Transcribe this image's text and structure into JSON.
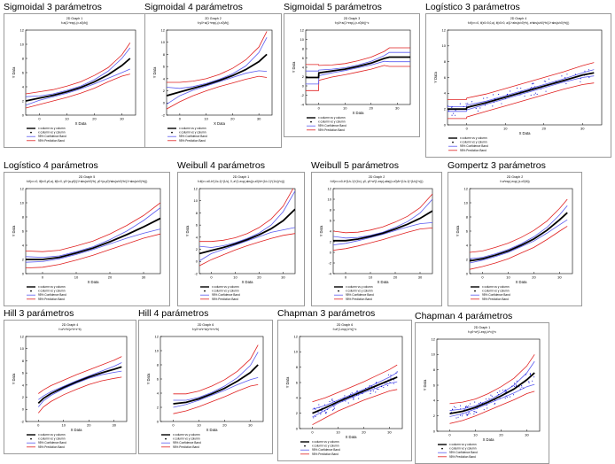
{
  "legend": {
    "entries": [
      "x column vs y column",
      "x column vs y column",
      "95% Confidence Band",
      "95% Prediction Band"
    ],
    "colors": {
      "fit": "#000000",
      "data": "#0000cc",
      "confidence": "#5a5af0",
      "prediction": "#e02020"
    }
  },
  "chart_data": [
    {
      "type": "line",
      "name": "Sigmoidal 3 parámetros",
      "graph_title": "2D Graph 1",
      "equation": "f=a/(1+exp(-(x-x0)/b))",
      "xlabel": "X Data",
      "ylabel": "Y Data",
      "xlim": [
        -5,
        35
      ],
      "ylim": [
        0,
        12
      ],
      "xticks": [
        0,
        10,
        20,
        30
      ],
      "yticks": [
        0,
        2,
        4,
        6,
        8,
        10,
        12
      ],
      "fit": {
        "x": [
          -5,
          0,
          5,
          10,
          15,
          20,
          25,
          30,
          33
        ],
        "y": [
          2.0,
          2.4,
          2.8,
          3.3,
          3.9,
          4.7,
          5.7,
          7.0,
          8.0
        ]
      },
      "ci": [
        0.6,
        0.3,
        0.2,
        0.2,
        0.2,
        0.3,
        0.5,
        1.0,
        1.5
      ],
      "pi": [
        1.0,
        0.9,
        0.8,
        0.8,
        0.8,
        0.9,
        1.0,
        1.5,
        2.2
      ],
      "points": 0
    },
    {
      "type": "line",
      "name": "Sigmoidal 4 parámetros",
      "graph_title": "2D Graph 2",
      "equation": "f=y0+a/(1+exp(-(x-x0)/b))",
      "xlabel": "X Data",
      "ylabel": "Y Data",
      "xlim": [
        -5,
        35
      ],
      "ylim": [
        -2,
        12
      ],
      "xticks": [
        0,
        10,
        20,
        30
      ],
      "yticks": [
        -2,
        0,
        2,
        4,
        6,
        8,
        10,
        12
      ],
      "fit": {
        "x": [
          -5,
          0,
          5,
          10,
          15,
          20,
          25,
          30,
          33
        ],
        "y": [
          1.2,
          1.8,
          2.4,
          3.0,
          3.7,
          4.5,
          5.5,
          6.8,
          8.0
        ]
      },
      "ci": [
        1.4,
        0.6,
        0.3,
        0.2,
        0.2,
        0.3,
        0.6,
        1.5,
        2.8
      ],
      "pi": [
        2.2,
        1.6,
        1.2,
        1.0,
        1.0,
        1.2,
        1.6,
        2.4,
        3.8
      ],
      "points": 0
    },
    {
      "type": "line",
      "name": "Sigmoidal 5 parámetros",
      "graph_title": "2D Graph 3",
      "equation": "f=y0+a/(1+exp(-(x-x0)/b))^c",
      "xlabel": "X Data",
      "ylabel": "Y Data",
      "xlim": [
        -5,
        35
      ],
      "ylim": [
        -4,
        12
      ],
      "xticks": [
        0,
        10,
        20,
        30
      ],
      "yticks": [
        -4,
        -2,
        0,
        2,
        4,
        6,
        8,
        10,
        12
      ],
      "fit": {
        "x": [
          -5,
          -0.1,
          0,
          5,
          10,
          15,
          20,
          25,
          27,
          30,
          35
        ],
        "y": [
          1.8,
          1.8,
          2.8,
          3.2,
          3.6,
          4.2,
          4.9,
          5.9,
          6.2,
          6.2,
          6.2
        ]
      },
      "ci": [
        1.4,
        1.4,
        0.6,
        0.4,
        0.3,
        0.3,
        0.4,
        0.6,
        1.0,
        1.0,
        1.0
      ],
      "pi": [
        2.8,
        2.8,
        1.6,
        1.3,
        1.2,
        1.2,
        1.3,
        1.5,
        2.0,
        2.0,
        2.0
      ],
      "points": 0
    },
    {
      "type": "line",
      "name": "Logístico 3 parámetros",
      "graph_title": "2D Graph 4",
      "equation": "f=if(x<=0, if(x0>0,0,a), if(x0>0, a/(1+abs(x/x0)^b), a*abs(x/x0)^b/(1+abs(x/x0)^b)))",
      "xlabel": "X Data",
      "ylabel": "Y Data",
      "xlim": [
        -5,
        35
      ],
      "ylim": [
        0,
        12
      ],
      "xticks": [
        0,
        10,
        20,
        30
      ],
      "yticks": [
        0,
        2,
        4,
        6,
        8,
        10,
        12
      ],
      "fit": {
        "x": [
          -5,
          -0.1,
          0,
          5,
          10,
          15,
          20,
          25,
          30,
          33
        ],
        "y": [
          2.0,
          2.0,
          2.2,
          2.8,
          3.5,
          4.2,
          4.9,
          5.6,
          6.3,
          6.6
        ]
      },
      "ci": [
        0.3,
        0.3,
        0.3,
        0.2,
        0.2,
        0.2,
        0.2,
        0.2,
        0.3,
        0.4
      ],
      "pi": [
        1.2,
        1.2,
        1.2,
        1.1,
        1.1,
        1.1,
        1.1,
        1.1,
        1.2,
        1.3
      ],
      "points": 70
    },
    {
      "type": "line",
      "name": "Logístico 4 parámetros",
      "graph_title": "2D Graph 5",
      "equation": "f=if(x<=0, if(b>0,y0,a), if(b>0, y0+(a-y0)/(1+abs(x/x0)^b), y0+(a-y0)*abs(x/x0)^b/(1+abs(x/x0)^b)))",
      "xlabel": "X Data",
      "ylabel": "Y Data",
      "xlim": [
        -5,
        35
      ],
      "ylim": [
        0,
        12
      ],
      "xticks": [
        0,
        10,
        20,
        30
      ],
      "yticks": [
        0,
        2,
        4,
        6,
        8,
        10,
        12
      ],
      "fit": {
        "x": [
          -5,
          0,
          5,
          10,
          15,
          20,
          25,
          30,
          35
        ],
        "y": [
          2.0,
          2.0,
          2.3,
          2.9,
          3.6,
          4.5,
          5.5,
          6.6,
          7.8
        ]
      },
      "ci": [
        0.4,
        0.3,
        0.2,
        0.2,
        0.2,
        0.3,
        0.5,
        0.9,
        1.5
      ],
      "pi": [
        1.2,
        1.1,
        1.0,
        1.0,
        1.0,
        1.1,
        1.3,
        1.6,
        2.2
      ],
      "points": 0
    },
    {
      "type": "line",
      "name": "Weibull 4 parámetros",
      "graph_title": "2D Graph 1",
      "equation": "f=if(x<=x0-b*(1/c-1)^(1/c), 0, a*(1-exp(-abs((x-x0)/b+(1/c-1)^(1/c))^c)))",
      "xlabel": "X Data",
      "ylabel": "Y Data",
      "xlim": [
        -5,
        35
      ],
      "ylim": [
        -2,
        12
      ],
      "xticks": [
        0,
        10,
        20,
        30
      ],
      "yticks": [
        -2,
        0,
        2,
        4,
        6,
        8,
        10,
        12
      ],
      "fit": {
        "x": [
          -5,
          0,
          5,
          10,
          15,
          20,
          25,
          30,
          35
        ],
        "y": [
          1.3,
          1.8,
          2.3,
          2.9,
          3.6,
          4.4,
          5.4,
          6.7,
          8.6
        ]
      },
      "ci": [
        1.2,
        0.5,
        0.3,
        0.2,
        0.2,
        0.3,
        0.6,
        1.5,
        3.0
      ],
      "pi": [
        2.0,
        1.5,
        1.2,
        1.0,
        1.0,
        1.2,
        1.6,
        2.4,
        4.0
      ],
      "points": 0
    },
    {
      "type": "line",
      "name": "Weibull 5 parámetros",
      "graph_title": "2D Graph 2",
      "equation": "f=if(x<=x0-b*(1/c-1)^(1/c), y0, y0+a*(1-exp(-abs((x-x0)/b+(1/c-1)^(1/c))^c)))",
      "xlabel": "X Data",
      "ylabel": "Y Data",
      "xlim": [
        -5,
        35
      ],
      "ylim": [
        -4,
        12
      ],
      "xticks": [
        0,
        10,
        20,
        30
      ],
      "yticks": [
        -4,
        -2,
        0,
        2,
        4,
        6,
        8,
        10,
        12
      ],
      "fit": {
        "x": [
          -5,
          0,
          5,
          10,
          15,
          20,
          25,
          30,
          35
        ],
        "y": [
          2.2,
          2.2,
          2.5,
          3.0,
          3.6,
          4.4,
          5.3,
          6.4,
          7.8
        ]
      },
      "ci": [
        0.8,
        0.5,
        0.3,
        0.2,
        0.2,
        0.3,
        0.5,
        1.0,
        2.2
      ],
      "pi": [
        1.8,
        1.5,
        1.3,
        1.2,
        1.2,
        1.3,
        1.5,
        2.0,
        3.2
      ],
      "points": 0
    },
    {
      "type": "line",
      "name": "Gompertz 3 parámetros",
      "graph_title": "2D Graph 2",
      "equation": "f=a*exp(-exp(-(x-x0)/b))",
      "xlabel": "X Data",
      "ylabel": "Y Data",
      "xlim": [
        -5,
        35
      ],
      "ylim": [
        0,
        12
      ],
      "xticks": [
        0,
        10,
        20,
        30
      ],
      "yticks": [
        0,
        2,
        4,
        6,
        8,
        10,
        12
      ],
      "fit": {
        "x": [
          -5,
          0,
          5,
          10,
          15,
          20,
          25,
          30,
          33
        ],
        "y": [
          1.8,
          2.1,
          2.6,
          3.2,
          4.0,
          4.9,
          6.1,
          7.6,
          8.6
        ]
      },
      "ci": [
        0.3,
        0.2,
        0.2,
        0.2,
        0.2,
        0.3,
        0.4,
        0.7,
        1.0
      ],
      "pi": [
        1.2,
        1.1,
        1.1,
        1.1,
        1.1,
        1.2,
        1.3,
        1.6,
        1.9
      ],
      "points": 0
    },
    {
      "type": "line",
      "name": "Hill 3 parámetros",
      "graph_title": "2D Graph 4",
      "equation": "f=a*x^b/(c^b+x^b)",
      "xlabel": "X Data",
      "ylabel": "Y Data",
      "xlim": [
        -5,
        35
      ],
      "ylim": [
        -2,
        12
      ],
      "xticks": [
        0,
        10,
        20,
        30
      ],
      "yticks": [
        -2,
        0,
        2,
        4,
        6,
        8,
        10,
        12
      ],
      "fit": {
        "x": [
          0,
          2,
          5,
          10,
          15,
          20,
          25,
          30,
          33
        ],
        "y": [
          1.0,
          1.8,
          2.6,
          3.6,
          4.5,
          5.3,
          6.0,
          6.6,
          7.0
        ]
      },
      "ci": [
        0.6,
        0.4,
        0.3,
        0.2,
        0.2,
        0.2,
        0.3,
        0.5,
        0.7
      ],
      "pi": [
        1.6,
        1.4,
        1.3,
        1.2,
        1.2,
        1.2,
        1.3,
        1.5,
        1.7
      ],
      "points": 0
    },
    {
      "type": "line",
      "name": "Hill 4 parámetros",
      "graph_title": "2D Graph 6",
      "equation": "f=y0+a*x^b/(c^b+x^b)",
      "xlabel": "X Data",
      "ylabel": "Y Data",
      "xlim": [
        -5,
        35
      ],
      "ylim": [
        0,
        12
      ],
      "xticks": [
        0,
        10,
        20,
        30
      ],
      "yticks": [
        0,
        2,
        4,
        6,
        8,
        10,
        12
      ],
      "fit": {
        "x": [
          0,
          5,
          10,
          15,
          20,
          25,
          30,
          33
        ],
        "y": [
          2.5,
          2.7,
          3.2,
          3.9,
          4.7,
          5.7,
          6.9,
          8.0
        ]
      },
      "ci": [
        0.5,
        0.3,
        0.2,
        0.2,
        0.3,
        0.5,
        1.0,
        1.8
      ],
      "pi": [
        1.4,
        1.2,
        1.1,
        1.1,
        1.2,
        1.4,
        1.9,
        2.8
      ],
      "points": 0
    },
    {
      "type": "line",
      "name": "Chapman 3 parámetros",
      "graph_title": "2D Graph 6",
      "equation": "f=a*(1-exp(-b*x))^c",
      "xlabel": "X Data",
      "ylabel": "Y Data",
      "xlim": [
        -5,
        35
      ],
      "ylim": [
        0,
        12
      ],
      "xticks": [
        0,
        10,
        20,
        30
      ],
      "yticks": [
        0,
        2,
        4,
        6,
        8,
        10,
        12
      ],
      "fit": {
        "x": [
          0,
          5,
          10,
          15,
          20,
          25,
          30,
          33
        ],
        "y": [
          2.0,
          2.7,
          3.5,
          4.2,
          4.9,
          5.6,
          6.3,
          6.7
        ]
      },
      "ci": [
        0.5,
        0.3,
        0.2,
        0.2,
        0.2,
        0.3,
        0.4,
        0.6
      ],
      "pi": [
        1.5,
        1.3,
        1.2,
        1.2,
        1.2,
        1.3,
        1.4,
        1.6
      ],
      "points": 90
    },
    {
      "type": "line",
      "name": "Chapman 4 parámetros",
      "graph_title": "2D Graph 1",
      "equation": "f=y0+a*(1-exp(-b*x))^c",
      "xlabel": "X Data",
      "ylabel": "Y Data",
      "xlim": [
        -5,
        35
      ],
      "ylim": [
        0,
        12
      ],
      "xticks": [
        0,
        10,
        20,
        30
      ],
      "yticks": [
        0,
        2,
        4,
        6,
        8,
        10,
        12
      ],
      "fit": {
        "x": [
          0,
          5,
          10,
          15,
          20,
          25,
          30,
          33
        ],
        "y": [
          2.3,
          2.6,
          3.1,
          3.8,
          4.6,
          5.5,
          6.7,
          7.6
        ]
      },
      "ci": [
        0.4,
        0.3,
        0.2,
        0.2,
        0.3,
        0.5,
        0.9,
        1.5
      ],
      "pi": [
        1.3,
        1.2,
        1.1,
        1.1,
        1.2,
        1.4,
        1.8,
        2.4
      ],
      "points": 90
    }
  ]
}
